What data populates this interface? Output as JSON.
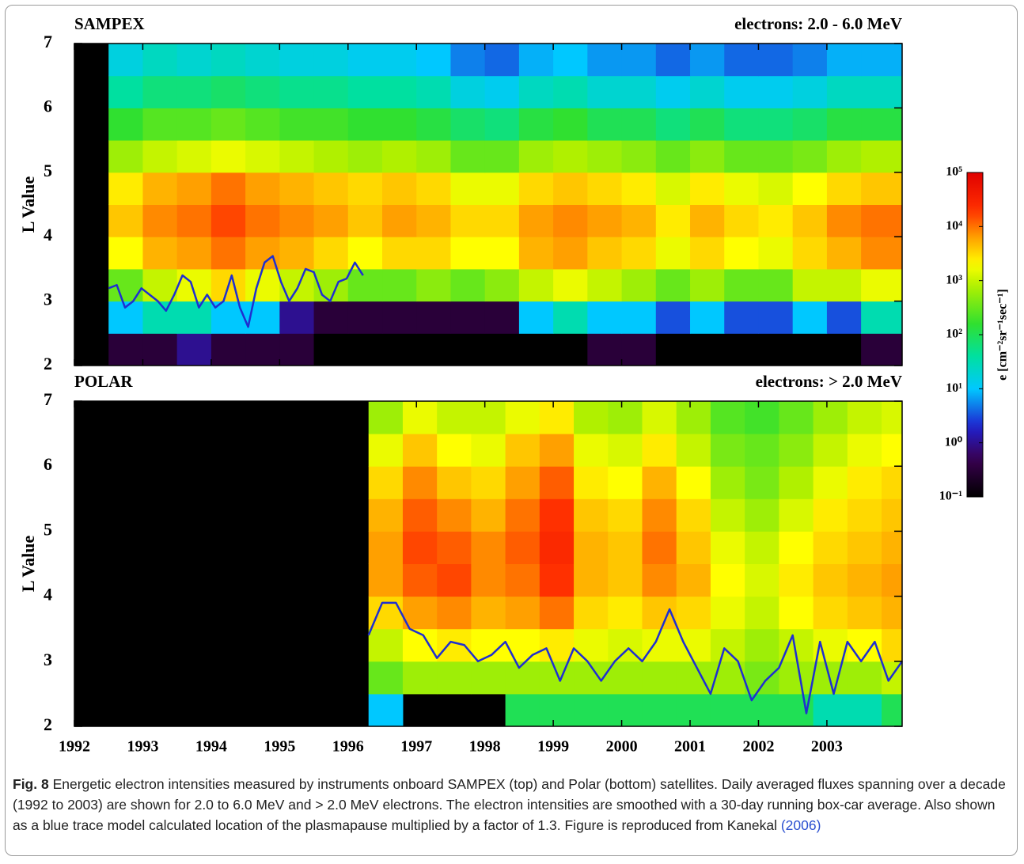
{
  "chart_data": [
    {
      "type": "heatmap",
      "title": "SAMPEX",
      "subtitle": "electrons: 2.0 - 6.0 MeV",
      "y_label": "L Value",
      "xlim": [
        1992,
        2004.1
      ],
      "ylim": [
        2,
        7
      ],
      "yticks": [
        2,
        3,
        4,
        5,
        6,
        7
      ],
      "xticks": [
        1992,
        1993,
        1994,
        1995,
        1996,
        1997,
        1998,
        1999,
        2000,
        2001,
        2002,
        2003
      ],
      "xbins": [
        1992,
        1992.5,
        1993,
        1993.5,
        1994,
        1994.5,
        1995,
        1995.5,
        1996,
        1996.5,
        1997,
        1997.5,
        1998,
        1998.5,
        1999,
        1999.5,
        2000,
        2000.5,
        2001,
        2001.5,
        2002,
        2002.5,
        2003,
        2003.5,
        2004.1
      ],
      "ybins": [
        2,
        2.5,
        3,
        3.5,
        4,
        4.5,
        5,
        5.5,
        6,
        6.5,
        7
      ],
      "z": [
        [
          null,
          -0.5,
          -0.5,
          0,
          -0.5,
          -0.5,
          -0.5,
          -1,
          -1,
          -1,
          -1,
          -1,
          -1,
          -1,
          -1,
          -0.5,
          -0.5,
          -1,
          -1,
          -1,
          -1,
          -1,
          -1,
          -0.5
        ],
        [
          null,
          1,
          1.5,
          1.5,
          1,
          1,
          0,
          -0.5,
          -0.5,
          -0.5,
          -0.5,
          -0.5,
          -0.5,
          1,
          1.5,
          1,
          1,
          0.5,
          1,
          0.5,
          0.5,
          1,
          0.5,
          1.5
        ],
        [
          null,
          2.5,
          3,
          3.2,
          3.5,
          3.2,
          3,
          2.8,
          2.5,
          2.5,
          2.7,
          2.5,
          2.7,
          3,
          3.2,
          3,
          2.8,
          2.5,
          2.8,
          2.5,
          2.5,
          3,
          3,
          3.2
        ],
        [
          null,
          3.3,
          3.7,
          3.8,
          4,
          3.8,
          3.7,
          3.5,
          3.3,
          3.5,
          3.5,
          3.3,
          3.3,
          3.7,
          3.8,
          3.6,
          3.5,
          3.2,
          3.5,
          3.3,
          3.2,
          3.5,
          3.7,
          3.9
        ],
        [
          null,
          3.6,
          3.9,
          4,
          4.2,
          4,
          3.9,
          3.8,
          3.6,
          3.8,
          3.7,
          3.5,
          3.5,
          3.8,
          3.9,
          3.8,
          3.7,
          3.4,
          3.7,
          3.5,
          3.4,
          3.6,
          3.9,
          4
        ],
        [
          null,
          3.4,
          3.7,
          3.8,
          4,
          3.8,
          3.7,
          3.6,
          3.5,
          3.6,
          3.5,
          3.2,
          3.2,
          3.5,
          3.6,
          3.5,
          3.4,
          3.1,
          3.4,
          3.2,
          3.1,
          3.3,
          3.5,
          3.6
        ],
        [
          null,
          2.8,
          3,
          3.1,
          3.2,
          3.1,
          3,
          2.9,
          2.8,
          2.9,
          2.8,
          2.5,
          2.5,
          2.8,
          2.9,
          2.8,
          2.7,
          2.5,
          2.7,
          2.5,
          2.5,
          2.6,
          2.8,
          2.9
        ],
        [
          null,
          2.2,
          2.4,
          2.4,
          2.5,
          2.4,
          2.3,
          2.3,
          2.2,
          2.2,
          2.1,
          1.9,
          1.8,
          2.1,
          2.2,
          2,
          2,
          1.8,
          2,
          1.8,
          1.8,
          1.9,
          2.1,
          2.1
        ],
        [
          null,
          1.6,
          1.8,
          1.8,
          1.9,
          1.8,
          1.7,
          1.7,
          1.6,
          1.6,
          1.5,
          1.2,
          1.1,
          1.4,
          1.5,
          1.3,
          1.3,
          1.1,
          1.3,
          1.1,
          1.1,
          1.2,
          1.4,
          1.4
        ],
        [
          null,
          1.2,
          1.4,
          1.3,
          1.4,
          1.3,
          1.2,
          1.2,
          1.1,
          1.1,
          1,
          0.7,
          0.6,
          0.9,
          1,
          0.8,
          0.8,
          0.6,
          0.8,
          0.6,
          0.6,
          0.7,
          0.9,
          0.9
        ]
      ],
      "trace": {
        "color": "#1f2fd0",
        "x": [
          1992.5,
          1992.62,
          1992.74,
          1992.86,
          1992.98,
          1993.1,
          1993.22,
          1993.34,
          1993.46,
          1993.58,
          1993.7,
          1993.82,
          1993.94,
          1994.06,
          1994.18,
          1994.3,
          1994.42,
          1994.54,
          1994.66,
          1994.78,
          1994.9,
          1995.02,
          1995.14,
          1995.26,
          1995.38,
          1995.5,
          1995.62,
          1995.74,
          1995.86,
          1995.98,
          1996.1,
          1996.22
        ],
        "values": [
          3.2,
          3.25,
          2.9,
          3.0,
          3.2,
          3.1,
          3.0,
          2.85,
          3.1,
          3.4,
          3.3,
          2.9,
          3.1,
          2.9,
          3.0,
          3.4,
          2.9,
          2.6,
          3.2,
          3.6,
          3.7,
          3.3,
          3.0,
          3.2,
          3.5,
          3.45,
          3.1,
          3.0,
          3.3,
          3.35,
          3.6,
          3.4
        ]
      }
    },
    {
      "type": "heatmap",
      "title": "POLAR",
      "subtitle": "electrons: > 2.0 MeV",
      "y_label": "L Value",
      "xlim": [
        1992,
        2004.1
      ],
      "ylim": [
        2,
        7
      ],
      "yticks": [
        2,
        3,
        4,
        5,
        6,
        7
      ],
      "xticks": [
        1992,
        1993,
        1994,
        1995,
        1996,
        1997,
        1998,
        1999,
        2000,
        2001,
        2002,
        2003
      ],
      "xbins": [
        1996.3,
        1996.8,
        1997.3,
        1997.8,
        1998.3,
        1998.8,
        1999.3,
        1999.8,
        2000.3,
        2000.8,
        2001.3,
        2001.8,
        2002.3,
        2002.8,
        2003.3,
        2003.8,
        2004.1
      ],
      "ybins": [
        2,
        2.5,
        3,
        3.5,
        4,
        4.5,
        5,
        5.5,
        6,
        6.5,
        7
      ],
      "z": [
        [
          1,
          null,
          null,
          null,
          2,
          2,
          2,
          2,
          2,
          2,
          2,
          2,
          2,
          1.5,
          1.5,
          2
        ],
        [
          2.5,
          2.8,
          2.8,
          2.8,
          2.8,
          2.8,
          2.8,
          2.8,
          2.8,
          2.8,
          2.8,
          2.6,
          2.8,
          2.8,
          2.8,
          3
        ],
        [
          3,
          3.3,
          3.4,
          3.3,
          3.3,
          3.4,
          3.2,
          3.1,
          3.2,
          3.2,
          3,
          2.8,
          3,
          3.2,
          3.3,
          3.5
        ],
        [
          3.5,
          3.8,
          3.9,
          3.7,
          3.8,
          4,
          3.5,
          3.4,
          3.6,
          3.5,
          3.2,
          3,
          3.3,
          3.5,
          3.6,
          3.7
        ],
        [
          3.8,
          4.1,
          4.2,
          3.9,
          4,
          4.3,
          3.7,
          3.6,
          3.9,
          3.7,
          3.3,
          3.1,
          3.4,
          3.6,
          3.7,
          3.8
        ],
        [
          3.8,
          4.2,
          4.1,
          3.9,
          4.1,
          4.4,
          3.7,
          3.6,
          4,
          3.6,
          3.2,
          3,
          3.3,
          3.5,
          3.6,
          3.7
        ],
        [
          3.7,
          4.1,
          3.9,
          3.7,
          4,
          4.3,
          3.6,
          3.5,
          3.9,
          3.5,
          3,
          2.8,
          3.1,
          3.4,
          3.5,
          3.6
        ],
        [
          3.5,
          3.9,
          3.6,
          3.5,
          3.8,
          4.1,
          3.4,
          3.3,
          3.7,
          3.3,
          2.8,
          2.6,
          2.9,
          3.2,
          3.4,
          3.5
        ],
        [
          3.2,
          3.6,
          3.3,
          3.2,
          3.6,
          3.8,
          3.2,
          3.1,
          3.4,
          3,
          2.6,
          2.5,
          2.7,
          3,
          3.2,
          3.3
        ],
        [
          2.8,
          3.2,
          3,
          3,
          3.2,
          3.4,
          2.9,
          2.8,
          3.1,
          2.8,
          2.4,
          2.3,
          2.5,
          2.8,
          3,
          3.1
        ]
      ],
      "trace": {
        "color": "#1f2fd0",
        "x": [
          1996.3,
          1996.5,
          1996.7,
          1996.9,
          1997.1,
          1997.3,
          1997.5,
          1997.7,
          1997.9,
          1998.1,
          1998.3,
          1998.5,
          1998.7,
          1998.9,
          1999.1,
          1999.3,
          1999.5,
          1999.7,
          1999.9,
          2000.1,
          2000.3,
          2000.5,
          2000.7,
          2000.9,
          2001.1,
          2001.3,
          2001.5,
          2001.7,
          2001.9,
          2002.1,
          2002.3,
          2002.5,
          2002.7,
          2002.9,
          2003.1,
          2003.3,
          2003.5,
          2003.7,
          2003.9,
          2004.1
        ],
        "values": [
          3.4,
          3.9,
          3.9,
          3.5,
          3.4,
          3.05,
          3.3,
          3.25,
          3.0,
          3.1,
          3.3,
          2.9,
          3.1,
          3.2,
          2.7,
          3.2,
          3.0,
          2.7,
          3.0,
          3.2,
          3.0,
          3.3,
          3.8,
          3.3,
          2.9,
          2.5,
          3.2,
          3.0,
          2.4,
          2.7,
          2.9,
          3.4,
          2.2,
          3.3,
          2.5,
          3.3,
          3.0,
          3.3,
          2.7,
          3.0
        ]
      }
    }
  ],
  "colorbar": {
    "title": "e [cm⁻²sr⁻¹sec⁻¹]",
    "log_scale": true,
    "lim": [
      -1,
      5
    ],
    "ticks": [
      {
        "value": 5,
        "label": "10⁵"
      },
      {
        "value": 4,
        "label": "10⁴"
      },
      {
        "value": 3,
        "label": "10³"
      },
      {
        "value": 2,
        "label": "10²"
      },
      {
        "value": 1,
        "label": "10¹"
      },
      {
        "value": 0,
        "label": "10⁰"
      },
      {
        "value": -1,
        "label": "10⁻¹"
      }
    ]
  },
  "caption": {
    "label": "Fig. 8",
    "text": "Energetic electron intensities measured by instruments onboard SAMPEX (top) and Polar (bottom) satellites. Daily averaged fluxes spanning over a decade (1992 to 2003) are shown for 2.0 to 6.0 MeV and > 2.0 MeV electrons. The electron intensities are smoothed with a 30-day running box-car average. Also shown as a blue trace model calculated location of the plasmapause multiplied by a factor of 1.3. Figure is reproduced from",
    "ref_author": "Kanekal",
    "ref_year": "(2006)"
  }
}
